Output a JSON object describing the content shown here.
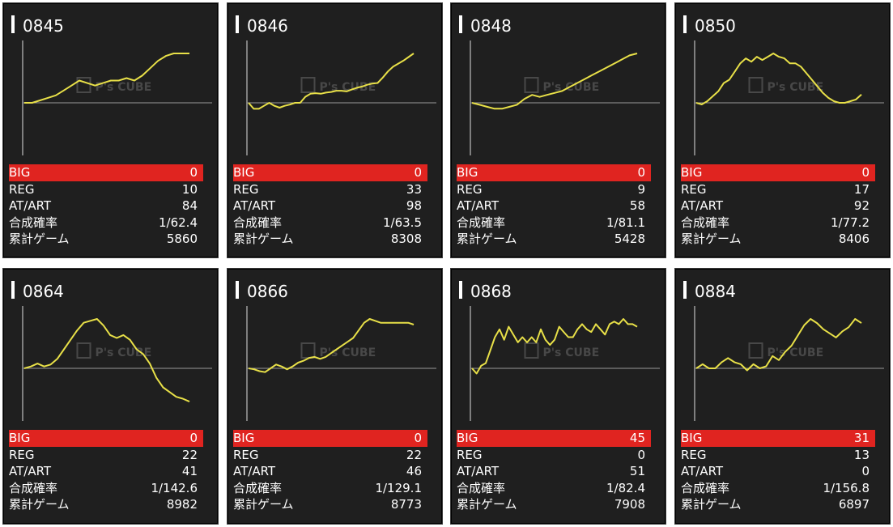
{
  "watermark": "P's CUBE",
  "colors": {
    "big_bar": "#e02420",
    "line": "#e8e048",
    "baseline": "#9a9a9a",
    "axis": "#bfbfbf",
    "panel": "#1f1f1f"
  },
  "labels": {
    "big": "BIG",
    "reg": "REG",
    "at": "AT/ART",
    "prob": "合成確率",
    "games": "累計ゲーム"
  },
  "machines": [
    {
      "id": "0845",
      "big": "0",
      "reg": "10",
      "at": "84",
      "prob": "1/62.4",
      "games": "5860",
      "graph": [
        0,
        0,
        1,
        2,
        3,
        5,
        7,
        9,
        8,
        7,
        8,
        9,
        9,
        10,
        9,
        11,
        14,
        17,
        19,
        20,
        20,
        20
      ]
    },
    {
      "id": "0846",
      "big": "0",
      "reg": "33",
      "at": "98",
      "prob": "1/63.5",
      "games": "8308",
      "graph": [
        0,
        -1,
        -1,
        -0.5,
        0,
        -0.5,
        -0.8,
        -0.5,
        -0.3,
        0,
        0,
        1,
        1.5,
        1.6,
        1.5,
        1.7,
        1.8,
        2,
        2,
        1.9,
        2.2,
        2.5,
        2.7,
        3,
        3.2,
        3.3,
        4.2,
        5.2,
        6,
        6.5,
        7,
        7.6,
        8.2
      ]
    },
    {
      "id": "0848",
      "big": "0",
      "reg": "9",
      "at": "58",
      "prob": "1/81.1",
      "games": "5428",
      "graph": [
        0,
        -1,
        -2,
        -3,
        -3,
        -2,
        -1,
        2,
        4,
        3,
        4,
        5,
        6,
        8,
        10,
        12,
        14,
        16,
        18,
        20,
        22,
        24,
        25
      ]
    },
    {
      "id": "0850",
      "big": "0",
      "reg": "17",
      "at": "92",
      "prob": "1/77.2",
      "games": "8406",
      "graph": [
        0,
        -1,
        1,
        4,
        7,
        12,
        14,
        19,
        24,
        27,
        25,
        28,
        26,
        28,
        30,
        28,
        27,
        24,
        24,
        22,
        18,
        14,
        10,
        6,
        3,
        1,
        0,
        0,
        1,
        2,
        5
      ]
    },
    {
      "id": "0864",
      "big": "0",
      "reg": "22",
      "at": "41",
      "prob": "1/142.6",
      "games": "8982",
      "graph": [
        0,
        0.2,
        0.5,
        0.2,
        0.4,
        1,
        2,
        3,
        4,
        4.8,
        5,
        5.2,
        4.5,
        3.5,
        3.2,
        3.5,
        3,
        2,
        1.5,
        0.5,
        -1,
        -2,
        -2.5,
        -3,
        -3.2,
        -3.5
      ]
    },
    {
      "id": "0866",
      "big": "0",
      "reg": "22",
      "at": "46",
      "prob": "1/129.1",
      "games": "8773",
      "graph": [
        0,
        -0.5,
        -1.5,
        -2,
        0,
        2,
        1,
        -0.5,
        1,
        3,
        4,
        5.5,
        6,
        5,
        6,
        8,
        10,
        12,
        14,
        16,
        20,
        24,
        26,
        25,
        24,
        24,
        24,
        24,
        24,
        24,
        23
      ]
    },
    {
      "id": "0868",
      "big": "45",
      "reg": "0",
      "at": "51",
      "prob": "1/82.4",
      "games": "7908",
      "graph": [
        0,
        -2,
        1,
        2,
        7,
        12,
        15,
        11,
        16,
        13,
        10,
        12,
        10,
        12,
        10,
        15,
        11,
        9,
        11,
        16,
        14,
        12,
        12,
        15,
        17,
        15,
        14,
        17,
        15,
        13,
        17,
        18,
        17,
        19,
        17,
        17,
        16
      ]
    },
    {
      "id": "0884",
      "big": "31",
      "reg": "13",
      "at": "0",
      "prob": "1/156.8",
      "games": "6897",
      "graph": [
        0,
        2,
        0,
        0,
        3,
        5,
        3,
        2,
        -1,
        2,
        0,
        1,
        6,
        4,
        8,
        11,
        16,
        21,
        24,
        22,
        19,
        17,
        15,
        18,
        20,
        24,
        22
      ]
    }
  ]
}
